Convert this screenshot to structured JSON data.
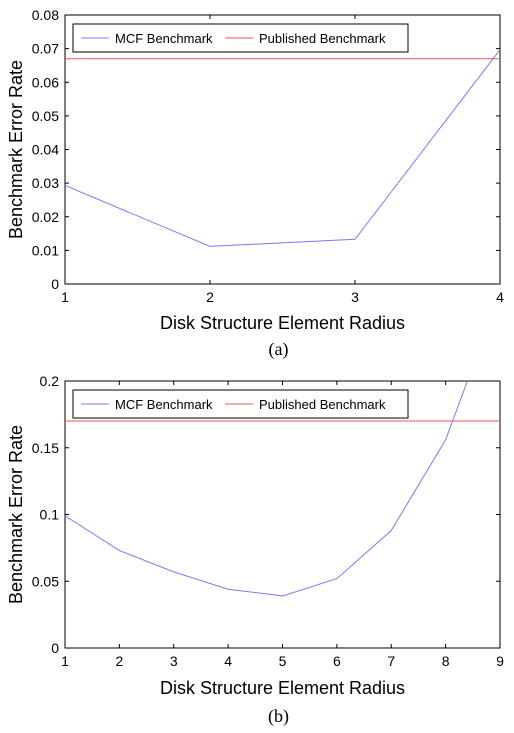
{
  "chart_data": [
    {
      "type": "line",
      "caption": "(a)",
      "xlabel": "Disk Structure Element Radius",
      "ylabel": "Benchmark Error Rate",
      "xlim": [
        1,
        4
      ],
      "ylim": [
        0,
        0.08
      ],
      "xticks": [
        "1",
        "2",
        "3",
        "4"
      ],
      "yticks": [
        "0",
        "0.01",
        "0.02",
        "0.03",
        "0.04",
        "0.05",
        "0.06",
        "0.07",
        "0.08"
      ],
      "legend_position": "top-left",
      "series": [
        {
          "name": "MCF Benchmark",
          "color": "#7b7bf0",
          "x": [
            1,
            2,
            3,
            4
          ],
          "y": [
            0.0293,
            0.0112,
            0.0133,
            0.0697
          ]
        },
        {
          "name": "Published Benchmark",
          "color": "#ee5555",
          "x": [
            1,
            4
          ],
          "y": [
            0.067,
            0.067
          ]
        }
      ]
    },
    {
      "type": "line",
      "caption": "(b)",
      "xlabel": "Disk Structure Element Radius",
      "ylabel": "Benchmark Error Rate",
      "xlim": [
        1,
        9
      ],
      "ylim": [
        0,
        0.2
      ],
      "xticks": [
        "1",
        "2",
        "3",
        "4",
        "5",
        "6",
        "7",
        "8",
        "9"
      ],
      "yticks": [
        "0",
        "0.05",
        "0.1",
        "0.15",
        "0.2"
      ],
      "legend_position": "top-left",
      "series": [
        {
          "name": "MCF Benchmark",
          "color": "#7b7bf0",
          "x": [
            1,
            2,
            3,
            4,
            5,
            6,
            7,
            8,
            8.4
          ],
          "y": [
            0.099,
            0.073,
            0.057,
            0.044,
            0.039,
            0.052,
            0.088,
            0.156,
            0.2
          ]
        },
        {
          "name": "Published Benchmark",
          "color": "#ee5555",
          "x": [
            1,
            9
          ],
          "y": [
            0.17,
            0.17
          ]
        }
      ]
    }
  ]
}
